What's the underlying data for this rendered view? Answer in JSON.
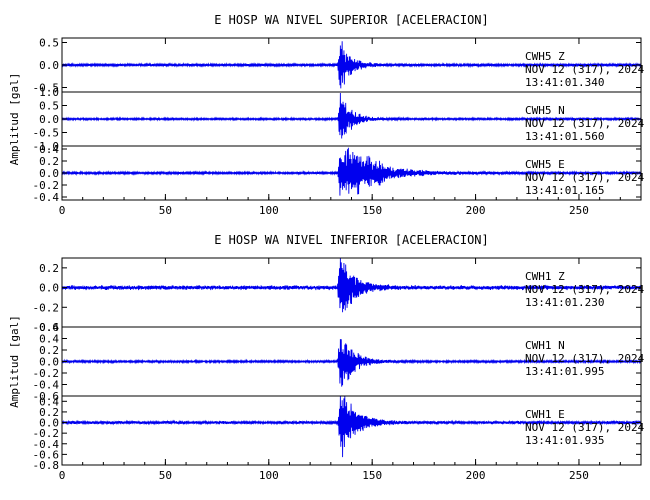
{
  "chart_data": [
    {
      "type": "line",
      "title": "E HOSP WA NIVEL SUPERIOR [ACELERACION]",
      "ylabel": "Amplitud [gal]",
      "xlim": [
        0,
        280
      ],
      "xticks": [
        "0",
        "50",
        "100",
        "150",
        "200",
        "250"
      ],
      "line_color": "#0000ee",
      "panels": [
        {
          "station": "CWH5",
          "component": "Z",
          "date": "NOV 12 (317), 2024",
          "time": "13:41:01.340",
          "ylim": [
            -0.6,
            0.6
          ],
          "yticks": [
            "0.5",
            "0.0",
            "-0.5"
          ],
          "noise_amplitude": 0.03,
          "event_onset_x": 134,
          "peak_amplitude": 0.55,
          "decay_seconds": 5
        },
        {
          "station": "CWH5",
          "component": "N",
          "date": "NOV 12 (317), 2024",
          "time": "13:41:01.560",
          "ylim": [
            -1.0,
            1.0
          ],
          "yticks": [
            "1.0",
            "0.5",
            "0.0",
            "-0.5",
            "-1.0"
          ],
          "noise_amplitude": 0.04,
          "event_onset_x": 134,
          "peak_amplitude": 0.95,
          "decay_seconds": 5
        },
        {
          "station": "CWH5",
          "component": "E",
          "date": "NOV 12 (317), 2024",
          "time": "13:41:01.165",
          "ylim": [
            -0.45,
            0.45
          ],
          "yticks": [
            "0.4",
            "0.2",
            "0.0",
            "-0.2",
            "-0.4"
          ],
          "noise_amplitude": 0.02,
          "event_onset_x": 134,
          "peak_amplitude": 0.4,
          "decay_seconds": 16
        }
      ]
    },
    {
      "type": "line",
      "title": "E HOSP WA NIVEL INFERIOR [ACELERACION]",
      "ylabel": "Amplitud [gal]",
      "xlim": [
        0,
        280
      ],
      "xticks": [
        "0",
        "50",
        "100",
        "150",
        "200",
        "250"
      ],
      "line_color": "#0000ee",
      "panels": [
        {
          "station": "CWH1",
          "component": "Z",
          "date": "NOV 12 (317), 2024",
          "time": "13:41:01.230",
          "ylim": [
            -0.4,
            0.3
          ],
          "yticks": [
            "0.2",
            "0.0",
            "-0.2",
            "-0.4"
          ],
          "noise_amplitude": 0.025,
          "event_onset_x": 134,
          "peak_amplitude": 0.32,
          "decay_seconds": 6
        },
        {
          "station": "CWH1",
          "component": "N",
          "date": "NOV 12 (317), 2024",
          "time": "13:41:01.995",
          "ylim": [
            -0.6,
            0.6
          ],
          "yticks": [
            "0.6",
            "0.4",
            "0.2",
            "0.0",
            "-0.2",
            "-0.4",
            "-0.6"
          ],
          "noise_amplitude": 0.02,
          "event_onset_x": 134,
          "peak_amplitude": 0.5,
          "decay_seconds": 6
        },
        {
          "station": "CWH1",
          "component": "E",
          "date": "NOV 12 (317), 2024",
          "time": "13:41:01.935",
          "ylim": [
            -0.8,
            0.5
          ],
          "yticks": [
            "0.4",
            "0.2",
            "0.0",
            "-0.2",
            "-0.4",
            "-0.6",
            "-0.8"
          ],
          "noise_amplitude": 0.03,
          "event_onset_x": 134,
          "peak_amplitude": 0.65,
          "decay_seconds": 7
        }
      ]
    }
  ]
}
